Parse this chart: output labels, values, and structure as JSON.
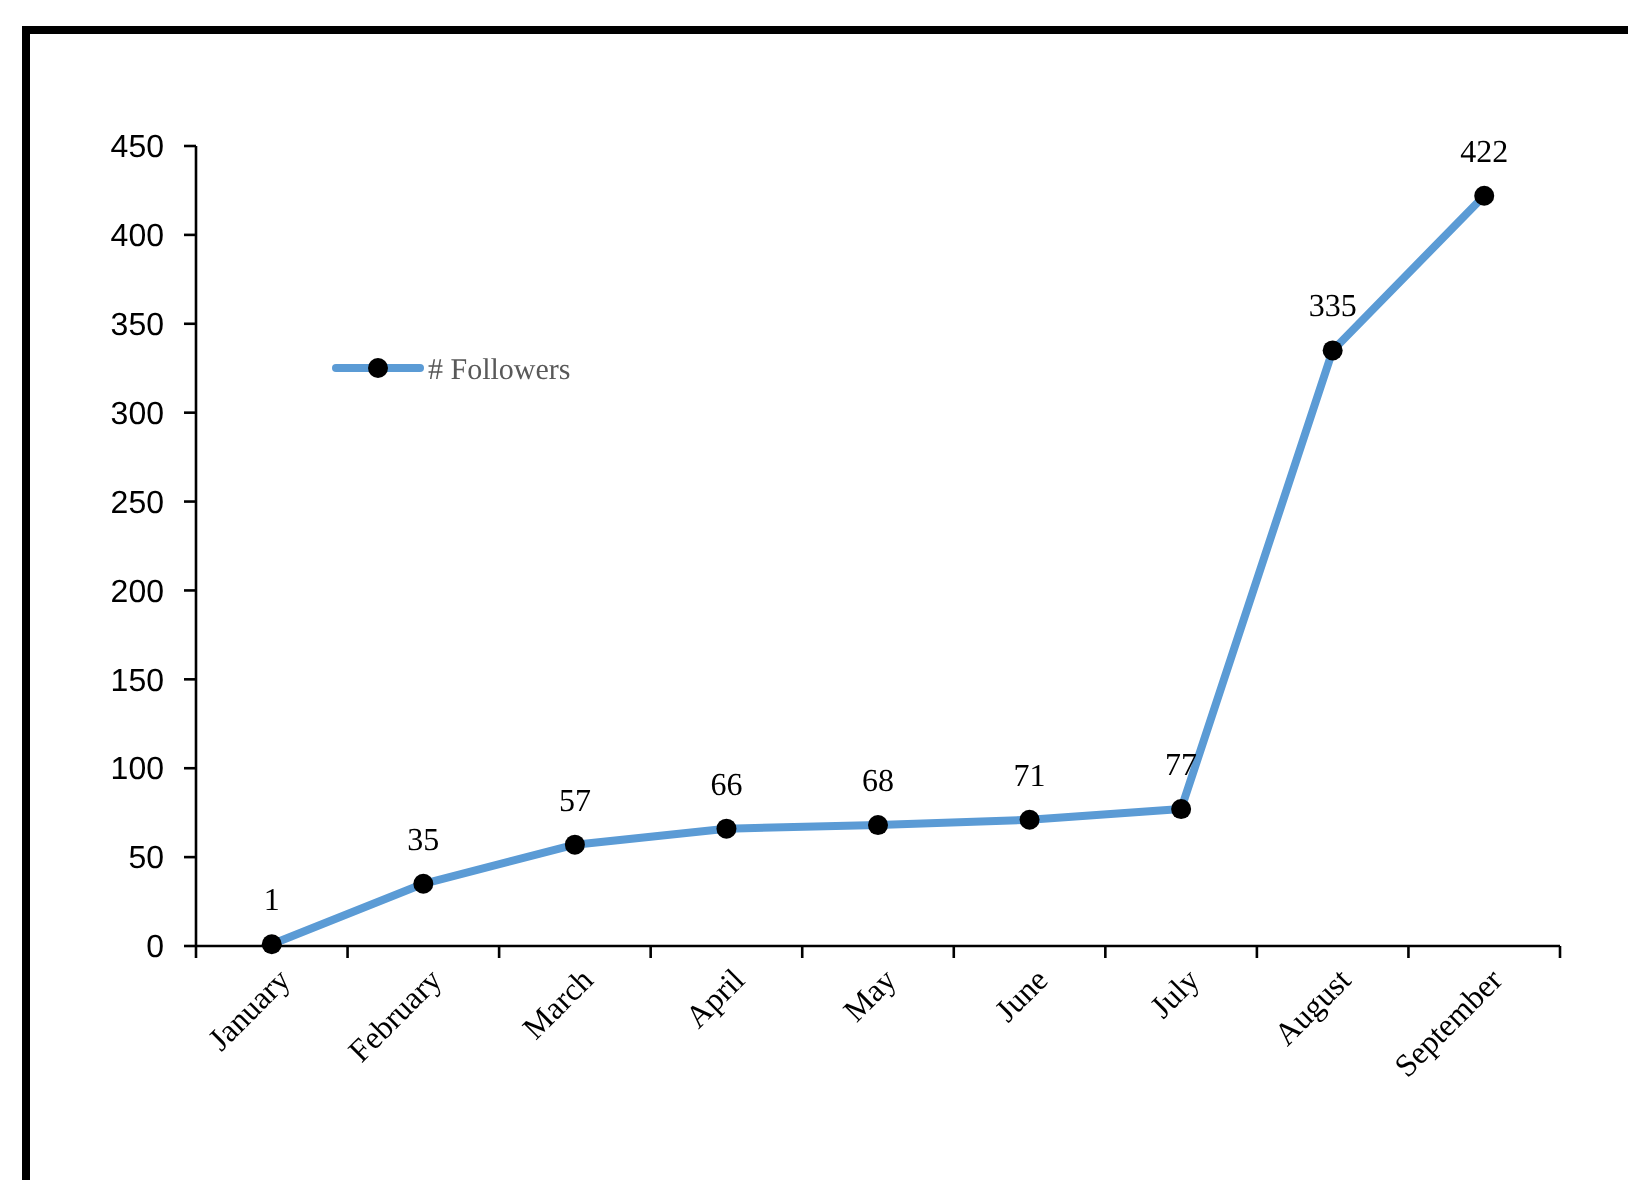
{
  "chart_data": {
    "type": "line",
    "categories": [
      "January",
      "February",
      "March",
      "April",
      "May",
      "June",
      "July",
      "August",
      "September"
    ],
    "series": [
      {
        "name": "# Followers",
        "color": "#5b9bd5",
        "values": [
          1,
          35,
          57,
          66,
          68,
          71,
          77,
          335,
          422
        ]
      }
    ],
    "ylim": [
      0,
      450
    ],
    "yticks": [
      0,
      50,
      100,
      150,
      200,
      250,
      300,
      350,
      400,
      450
    ],
    "grid": false,
    "legend": "top left",
    "marker": "circle",
    "line_style": "solid",
    "data_labels": true
  }
}
